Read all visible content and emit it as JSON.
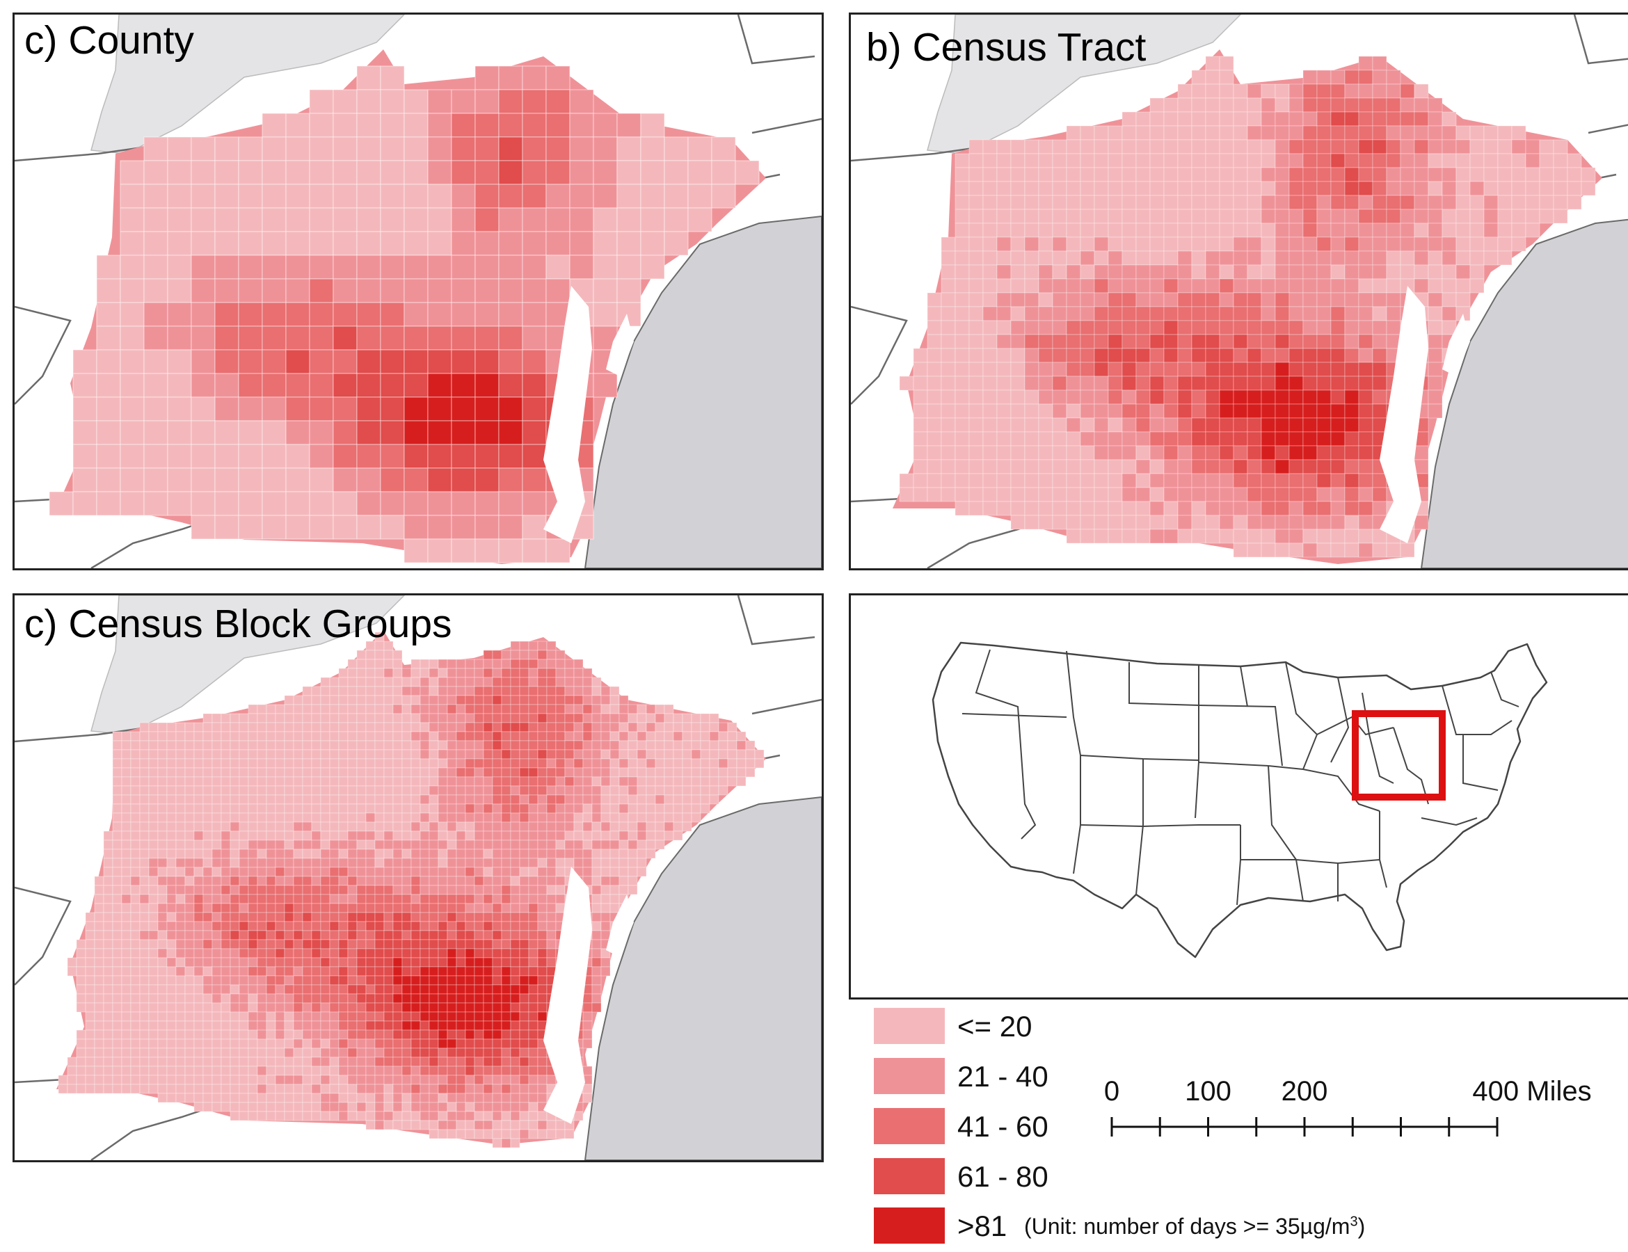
{
  "panels": [
    {
      "id": "county",
      "title": "c) County",
      "detail": 1
    },
    {
      "id": "tract",
      "title": "b) Census Tract",
      "detail": 2
    },
    {
      "id": "blockgroup",
      "title": "c) Census Block Groups",
      "detail": 3
    }
  ],
  "legend": {
    "classes": [
      {
        "label": "<= 20",
        "color": "#f4b8bc"
      },
      {
        "label": "21 - 40",
        "color": "#ef9298"
      },
      {
        "label": "41 - 60",
        "color": "#e96f71"
      },
      {
        "label": "61 - 80",
        "color": "#e14c4c"
      },
      {
        "label": ">81",
        "color": "#d71e1e"
      }
    ],
    "unit_prefix": "(Unit: number of days >= 35µg/m",
    "unit_sup": "3",
    "unit_suffix": ")"
  },
  "scale_bar": {
    "labels": [
      {
        "text": "0",
        "miles": 0
      },
      {
        "text": "100",
        "miles": 100
      },
      {
        "text": "200",
        "miles": 200
      },
      {
        "text": "400 Miles",
        "miles": 400
      }
    ],
    "tick_interval_miles": 50,
    "max_miles": 400
  },
  "colors": {
    "water": "#d2d2d6",
    "lake": "#e4e4e6",
    "border": "#6a6a6a",
    "locator_box": "#dd1111"
  }
}
